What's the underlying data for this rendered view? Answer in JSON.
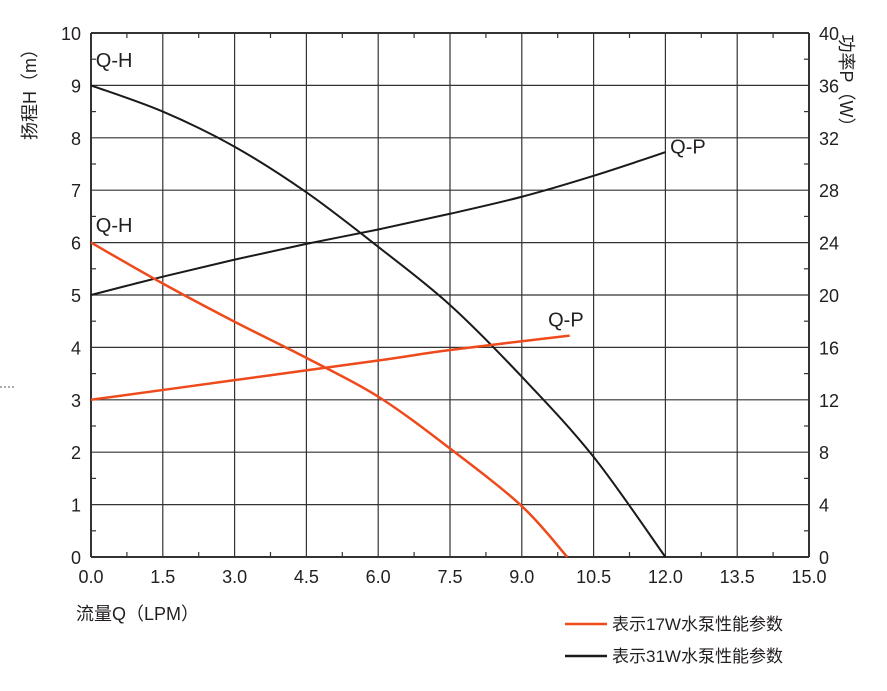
{
  "chart_data": {
    "type": "line",
    "title": "",
    "xlabel": "流量Q（LPM）",
    "ylabel": "扬程H（m）",
    "y2label": "功率P（W）",
    "xlim": [
      0,
      15
    ],
    "ylim": [
      0,
      10
    ],
    "y2lim": [
      0,
      40
    ],
    "xticks": [
      "0.0",
      "1.5",
      "3.0",
      "4.5",
      "6.0",
      "7.5",
      "9.0",
      "10.5",
      "12.0",
      "13.5",
      "15.0"
    ],
    "yticks": [
      "0",
      "1",
      "2",
      "3",
      "4",
      "5",
      "6",
      "7",
      "8",
      "9",
      "10"
    ],
    "y2ticks": [
      "0",
      "4",
      "8",
      "12",
      "16",
      "20",
      "24",
      "28",
      "32",
      "36",
      "40"
    ],
    "grid": true,
    "legend_position": "bottom-right",
    "colors": {
      "17W": "#ee4a1c",
      "31W": "#1a1a1a"
    },
    "series": [
      {
        "name": "表示31W水泵性能参数",
        "curve": "Q-H",
        "axis": "left",
        "color": "#1a1a1a",
        "x": [
          0,
          1.5,
          3.0,
          4.5,
          6.0,
          7.5,
          9.0,
          10.5,
          12.0
        ],
        "y": [
          9.0,
          8.5,
          7.83,
          6.96,
          5.92,
          4.81,
          3.44,
          1.91,
          0
        ]
      },
      {
        "name": "表示31W水泵性能参数",
        "curve": "Q-P",
        "axis": "right",
        "color": "#1a1a1a",
        "x": [
          0,
          1.5,
          3.0,
          4.5,
          6.0,
          7.5,
          9.0,
          10.5,
          12.0
        ],
        "y": [
          20,
          21.4,
          22.7,
          23.9,
          25.0,
          26.2,
          27.5,
          29.1,
          30.9
        ]
      },
      {
        "name": "表示17W水泵性能参数",
        "curve": "Q-H",
        "axis": "left",
        "color": "#ee4a1c",
        "x": [
          0,
          1.5,
          3.0,
          4.5,
          6.0,
          7.5,
          9.0,
          9.95
        ],
        "y": [
          6.0,
          5.22,
          4.49,
          3.8,
          3.06,
          2.07,
          0.97,
          0
        ]
      },
      {
        "name": "表示17W水泵性能参数",
        "curve": "Q-P",
        "axis": "right",
        "color": "#ee4a1c",
        "x": [
          0,
          3.0,
          6.0,
          7.5,
          10.0
        ],
        "y": [
          12,
          13.5,
          15.0,
          15.8,
          16.9
        ]
      }
    ],
    "annotations": [
      {
        "text": "Q-H",
        "x": 0.1,
        "y": 9.35
      },
      {
        "text": "Q-H",
        "x": 0.1,
        "y": 6.2
      },
      {
        "text": "Q-P",
        "x": 12.1,
        "y": 7.7
      },
      {
        "text": "Q-P",
        "x": 9.55,
        "y": 4.4
      }
    ],
    "legend": [
      "表示17W水泵性能参数",
      "表示31W水泵性能参数"
    ]
  }
}
